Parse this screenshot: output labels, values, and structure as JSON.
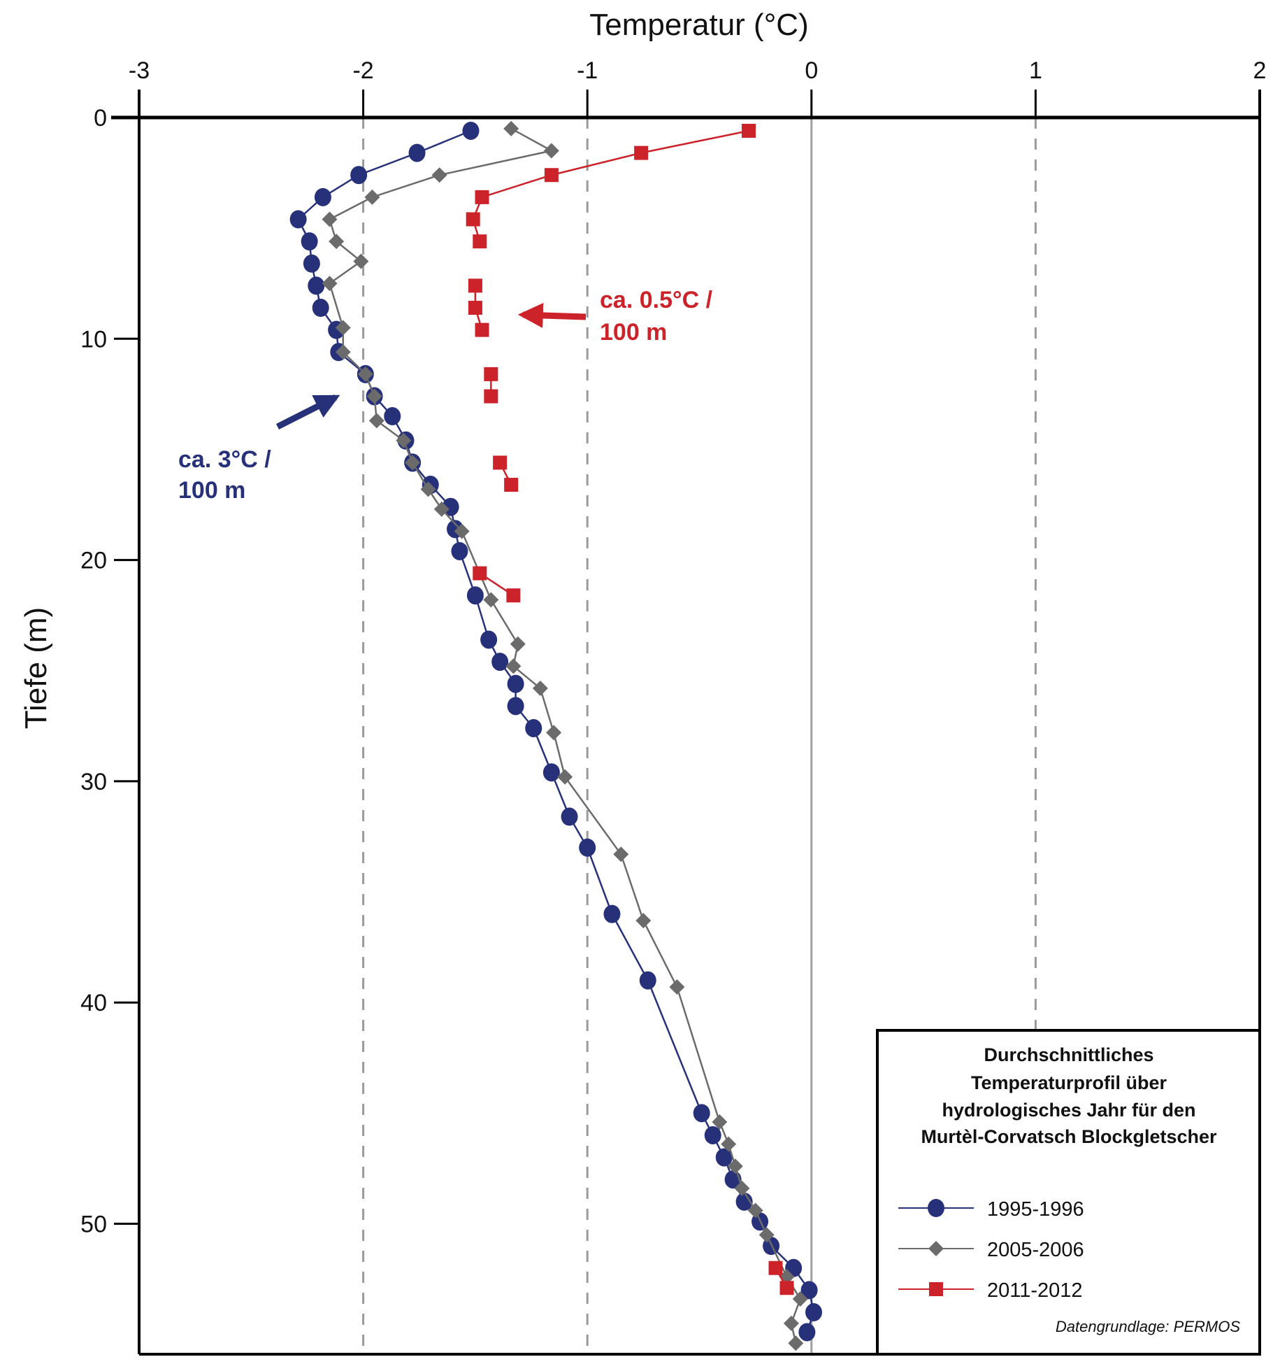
{
  "chart_data": {
    "type": "line",
    "orientation": "depth-profile",
    "title": "",
    "xlabel": "Temperatur (°C)",
    "ylabel": "Tiefe (m)",
    "xlim": [
      -3,
      2
    ],
    "ylim": [
      0,
      56
    ],
    "y_inverted": true,
    "x_axis_position": "top",
    "x_ticks": [
      -3,
      -2,
      -1,
      0,
      1,
      2
    ],
    "x_tick_labels": [
      "-3",
      "-2",
      "-1",
      "0",
      "1",
      "2"
    ],
    "y_ticks": [
      0,
      10,
      20,
      30,
      40,
      50
    ],
    "y_tick_labels": [
      "0",
      "10",
      "20",
      "30",
      "40",
      "50"
    ],
    "gridlines": {
      "x_dashed": [
        -2,
        -1,
        1
      ],
      "x_solid": [
        0
      ]
    },
    "legend": {
      "placement": "bottom-right",
      "title_lines": [
        "Durchschnittliches",
        "Temperaturprofil über",
        "hydrologisches Jahr für den",
        "Murtèl-Corvatsch Blockgletscher"
      ],
      "source": "Datengrundlage: PERMOS"
    },
    "series": [
      {
        "name": "1995-1996",
        "color": "#27317a",
        "marker": "circle",
        "points": [
          [
            -1.52,
            0.6
          ],
          [
            -1.76,
            1.6
          ],
          [
            -2.02,
            2.6
          ],
          [
            -2.18,
            3.6
          ],
          [
            -2.29,
            4.6
          ],
          [
            -2.24,
            5.6
          ],
          [
            -2.23,
            6.6
          ],
          [
            -2.21,
            7.6
          ],
          [
            -2.19,
            8.6
          ],
          [
            -2.12,
            9.6
          ],
          [
            -2.11,
            10.6
          ],
          [
            -1.99,
            11.6
          ],
          [
            -1.95,
            12.6
          ],
          [
            -1.87,
            13.5
          ],
          [
            -1.81,
            14.6
          ],
          [
            -1.78,
            15.6
          ],
          [
            -1.7,
            16.6
          ],
          [
            -1.61,
            17.6
          ],
          [
            -1.59,
            18.6
          ],
          [
            -1.57,
            19.6
          ],
          [
            -1.5,
            21.6
          ],
          [
            -1.44,
            23.6
          ],
          [
            -1.39,
            24.6
          ],
          [
            -1.32,
            25.6
          ],
          [
            -1.32,
            26.6
          ],
          [
            -1.24,
            27.6
          ],
          [
            -1.16,
            29.6
          ],
          [
            -1.08,
            31.6
          ],
          [
            -1.0,
            33.0
          ],
          [
            -0.89,
            36.0
          ],
          [
            -0.73,
            39.0
          ],
          [
            -0.49,
            45.0
          ],
          [
            -0.44,
            46.0
          ],
          [
            -0.39,
            47.0
          ],
          [
            -0.35,
            48.0
          ],
          [
            -0.3,
            49.0
          ],
          [
            -0.23,
            49.9
          ],
          [
            -0.18,
            51.0
          ],
          [
            -0.08,
            52.0
          ],
          [
            -0.01,
            53.0
          ],
          [
            0.01,
            54.0
          ],
          [
            -0.02,
            54.9
          ]
        ]
      },
      {
        "name": "2005-2006",
        "color": "#6b6b6b",
        "marker": "diamond",
        "points": [
          [
            -1.34,
            0.5
          ],
          [
            -1.16,
            1.5
          ],
          [
            -1.66,
            2.6
          ],
          [
            -1.96,
            3.6
          ],
          [
            -2.15,
            4.6
          ],
          [
            -2.12,
            5.6
          ],
          [
            -2.01,
            6.5
          ],
          [
            -2.15,
            7.5
          ],
          [
            -2.09,
            9.5
          ],
          [
            -2.09,
            10.6
          ],
          [
            -1.99,
            11.6
          ],
          [
            -1.95,
            12.6
          ],
          [
            -1.94,
            13.7
          ],
          [
            -1.82,
            14.6
          ],
          [
            -1.78,
            15.6
          ],
          [
            -1.71,
            16.8
          ],
          [
            -1.65,
            17.7
          ],
          [
            -1.56,
            18.7
          ],
          [
            -1.43,
            21.8
          ],
          [
            -1.31,
            23.8
          ],
          [
            -1.33,
            24.8
          ],
          [
            -1.21,
            25.8
          ],
          [
            -1.15,
            27.8
          ],
          [
            -1.1,
            29.8
          ],
          [
            -0.85,
            33.3
          ],
          [
            -0.75,
            36.3
          ],
          [
            -0.6,
            39.3
          ],
          [
            -0.41,
            45.4
          ],
          [
            -0.37,
            46.4
          ],
          [
            -0.34,
            47.4
          ],
          [
            -0.31,
            48.4
          ],
          [
            -0.25,
            49.4
          ],
          [
            -0.2,
            50.5
          ],
          [
            -0.11,
            52.4
          ],
          [
            -0.05,
            53.4
          ],
          [
            -0.09,
            54.5
          ],
          [
            -0.07,
            55.4
          ]
        ]
      },
      {
        "name": "2011-2012",
        "color": "#cc2229",
        "marker": "square",
        "points": [
          [
            -0.28,
            0.6
          ],
          [
            -0.76,
            1.6
          ],
          [
            -1.16,
            2.6
          ],
          [
            -1.47,
            3.6
          ],
          [
            -1.51,
            4.6
          ],
          [
            -1.48,
            5.6
          ],
          [
            -1.5,
            7.6
          ],
          [
            -1.5,
            8.6
          ],
          [
            -1.47,
            9.6
          ],
          [
            -1.43,
            11.6
          ],
          [
            -1.43,
            12.6
          ],
          [
            -1.39,
            15.6
          ],
          [
            -1.34,
            16.6
          ],
          [
            -1.48,
            20.6
          ],
          [
            -1.33,
            21.6
          ],
          [
            -0.16,
            52.0
          ],
          [
            -0.11,
            52.9
          ]
        ],
        "segments": [
          [
            0,
            1,
            2,
            3,
            4,
            5
          ],
          [
            6,
            7,
            8
          ],
          [
            9,
            10
          ],
          [
            11,
            12
          ],
          [
            13,
            14
          ],
          [
            15,
            16
          ]
        ]
      }
    ],
    "annotations": [
      {
        "lines": [
          "ca. 3°C /",
          "100 m"
        ],
        "color": "#27317a",
        "points_to_series": "1995-1996"
      },
      {
        "lines": [
          "ca. 0.5°C /",
          "100 m"
        ],
        "color": "#cc2229",
        "points_to_series": "2011-2012"
      }
    ]
  }
}
